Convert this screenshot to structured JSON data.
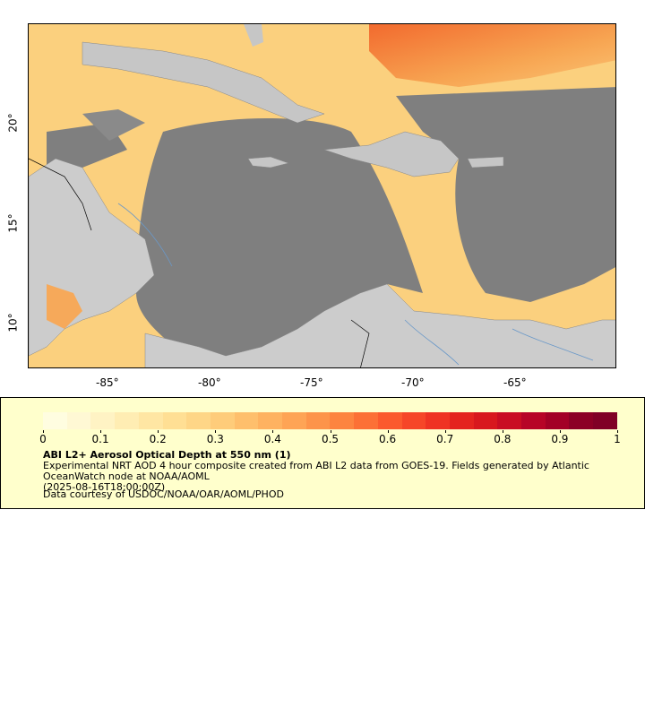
{
  "map": {
    "background_color": "#7f7f7f",
    "land_color": "#cccccc",
    "lake_color": "#bfbfbf",
    "x_ticks": [
      "-85°",
      "-80°",
      "-75°",
      "-70°",
      "-65°"
    ],
    "y_ticks": [
      "20°",
      "15°",
      "10°"
    ]
  },
  "legend": {
    "colorbar_colors": [
      "#fffde0",
      "#fff8d4",
      "#fff3c4",
      "#ffedb3",
      "#ffe6a3",
      "#ffdf94",
      "#fed687",
      "#fecc7a",
      "#febf6c",
      "#feb260",
      "#fea455",
      "#fd944a",
      "#fd8440",
      "#fc7036",
      "#fb5a2e",
      "#f64628",
      "#ef3323",
      "#e4241f",
      "#d8181e",
      "#c90d23",
      "#b70427",
      "#a30026",
      "#8c0025",
      "#800026"
    ],
    "tick_labels": [
      "0",
      "0.1",
      "0.2",
      "0.3",
      "0.4",
      "0.5",
      "0.6",
      "0.7",
      "0.8",
      "0.9",
      "1"
    ],
    "title": "ABI L2+ Aerosol Optical Depth at 550 nm (1)",
    "description": "Experimental NRT AOD 4 hour composite created from ABI L2 data from GOES-19. Fields generated by Atlantic OceanWatch node at NOAA/AOML",
    "timestamp": "(2025-08-16T18:00:00Z)",
    "credit": "Data courtesy of USDOC/NOAA/OAR/AOML/PHOD"
  }
}
